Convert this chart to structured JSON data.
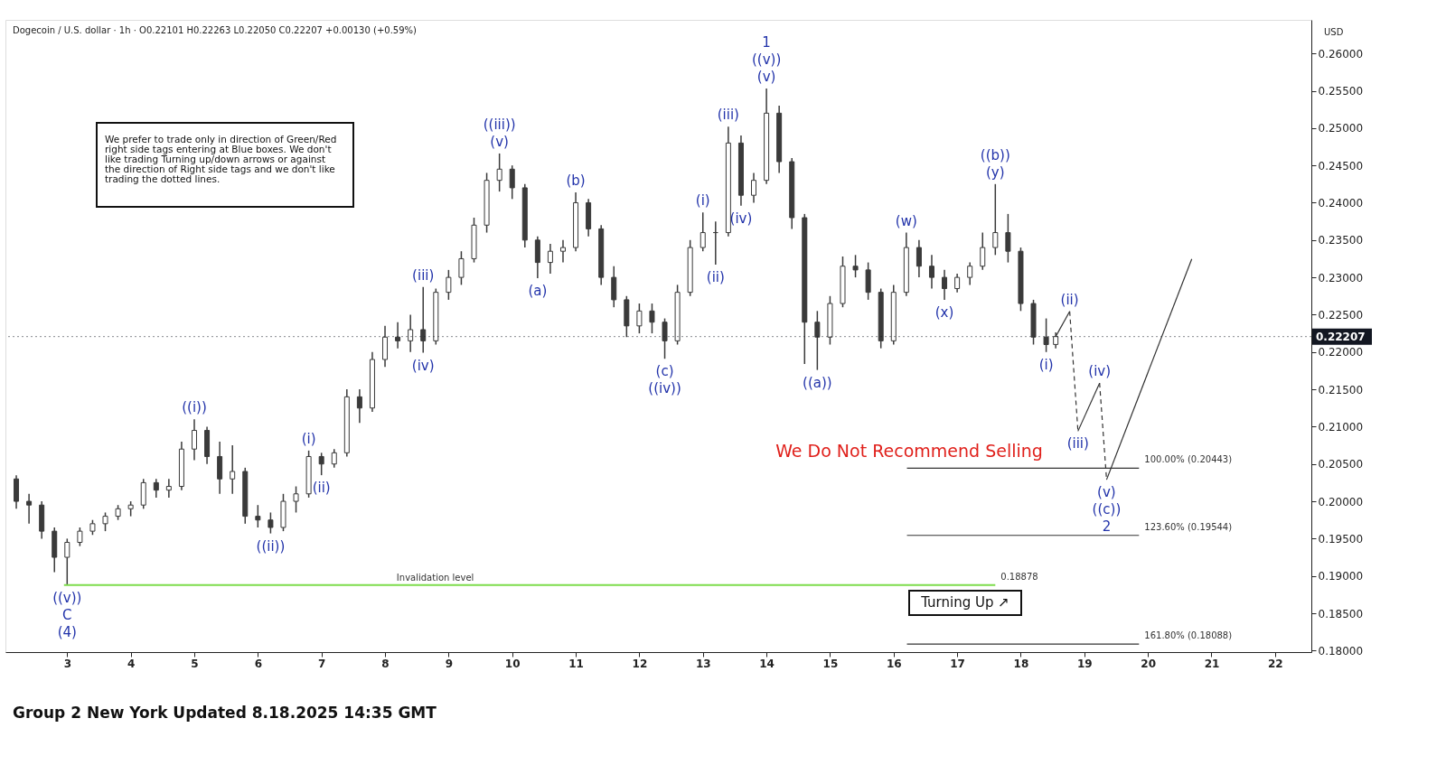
{
  "chart_data": {
    "type": "candlestick",
    "title": "Dogecoin / U.S. dollar · 1h · O0.22101 H0.22263 L0.22050 C0.22207 +0.00130 (+0.59%)",
    "ylabel": "USD",
    "color": "#3a3a3a",
    "x": [
      2.2,
      2.4,
      2.6,
      2.8,
      3.0,
      3.2,
      3.4,
      3.6,
      3.8,
      4.0,
      4.2,
      4.4,
      4.6,
      4.8,
      5.0,
      5.2,
      5.4,
      5.6,
      5.8,
      6.0,
      6.2,
      6.4,
      6.6,
      6.8,
      7.0,
      7.2,
      7.4,
      7.6,
      7.8,
      8.0,
      8.2,
      8.4,
      8.6,
      8.8,
      9.0,
      9.2,
      9.4,
      9.6,
      9.8,
      10.0,
      10.2,
      10.4,
      10.6,
      10.8,
      11.0,
      11.2,
      11.4,
      11.6,
      11.8,
      12.0,
      12.2,
      12.4,
      12.6,
      12.8,
      13.0,
      13.2,
      13.4,
      13.6,
      13.8,
      14.0,
      14.2,
      14.4,
      14.6,
      14.8,
      15.0,
      15.2,
      15.4,
      15.6,
      15.8,
      16.0,
      16.2,
      16.4,
      16.6,
      16.8,
      17.0,
      17.2,
      17.4,
      17.6,
      17.8,
      18.0,
      18.2,
      18.4,
      18.55
    ],
    "ohlc": [
      [
        0.203,
        0.2035,
        0.199,
        0.2
      ],
      [
        0.2,
        0.201,
        0.197,
        0.1995
      ],
      [
        0.1995,
        0.2,
        0.195,
        0.196
      ],
      [
        0.196,
        0.1965,
        0.1905,
        0.1925
      ],
      [
        0.1925,
        0.195,
        0.18878,
        0.1945
      ],
      [
        0.1945,
        0.1965,
        0.194,
        0.196
      ],
      [
        0.196,
        0.1975,
        0.1955,
        0.197
      ],
      [
        0.197,
        0.1985,
        0.196,
        0.198
      ],
      [
        0.198,
        0.1995,
        0.1975,
        0.199
      ],
      [
        0.199,
        0.2,
        0.198,
        0.1995
      ],
      [
        0.1995,
        0.203,
        0.199,
        0.2025
      ],
      [
        0.2025,
        0.203,
        0.2005,
        0.2015
      ],
      [
        0.2015,
        0.203,
        0.2005,
        0.202
      ],
      [
        0.202,
        0.208,
        0.2015,
        0.207
      ],
      [
        0.207,
        0.211,
        0.2055,
        0.2095
      ],
      [
        0.2095,
        0.21,
        0.205,
        0.206
      ],
      [
        0.206,
        0.208,
        0.201,
        0.203
      ],
      [
        0.203,
        0.2075,
        0.201,
        0.204
      ],
      [
        0.204,
        0.2045,
        0.197,
        0.198
      ],
      [
        0.198,
        0.1995,
        0.1965,
        0.1975
      ],
      [
        0.1975,
        0.1985,
        0.1957,
        0.1965
      ],
      [
        0.1965,
        0.201,
        0.196,
        0.2
      ],
      [
        0.2,
        0.202,
        0.1985,
        0.201
      ],
      [
        0.201,
        0.2068,
        0.2005,
        0.206
      ],
      [
        0.206,
        0.2065,
        0.2035,
        0.205
      ],
      [
        0.205,
        0.207,
        0.2045,
        0.2065
      ],
      [
        0.2065,
        0.215,
        0.206,
        0.214
      ],
      [
        0.214,
        0.215,
        0.2105,
        0.2125
      ],
      [
        0.2125,
        0.22,
        0.212,
        0.219
      ],
      [
        0.219,
        0.2235,
        0.218,
        0.222
      ],
      [
        0.222,
        0.224,
        0.2205,
        0.2215
      ],
      [
        0.2215,
        0.225,
        0.22,
        0.223
      ],
      [
        0.223,
        0.2287,
        0.2199,
        0.2215
      ],
      [
        0.2215,
        0.2285,
        0.221,
        0.228
      ],
      [
        0.228,
        0.231,
        0.227,
        0.23
      ],
      [
        0.23,
        0.2335,
        0.229,
        0.2325
      ],
      [
        0.2325,
        0.238,
        0.232,
        0.237
      ],
      [
        0.237,
        0.244,
        0.236,
        0.243
      ],
      [
        0.243,
        0.2466,
        0.2415,
        0.2445
      ],
      [
        0.2445,
        0.245,
        0.2405,
        0.242
      ],
      [
        0.242,
        0.2425,
        0.234,
        0.235
      ],
      [
        0.235,
        0.2355,
        0.2299,
        0.232
      ],
      [
        0.232,
        0.2345,
        0.2305,
        0.2335
      ],
      [
        0.2335,
        0.235,
        0.232,
        0.234
      ],
      [
        0.234,
        0.2414,
        0.2335,
        0.24
      ],
      [
        0.24,
        0.2405,
        0.2355,
        0.2365
      ],
      [
        0.2365,
        0.237,
        0.229,
        0.23
      ],
      [
        0.23,
        0.2315,
        0.226,
        0.227
      ],
      [
        0.227,
        0.2275,
        0.222,
        0.2235
      ],
      [
        0.2235,
        0.2265,
        0.2225,
        0.2255
      ],
      [
        0.2255,
        0.2265,
        0.2225,
        0.224
      ],
      [
        0.224,
        0.2245,
        0.2191,
        0.2215
      ],
      [
        0.2215,
        0.229,
        0.221,
        0.228
      ],
      [
        0.228,
        0.235,
        0.2275,
        0.234
      ],
      [
        0.234,
        0.2387,
        0.2335,
        0.236
      ],
      [
        0.236,
        0.2375,
        0.2317,
        0.236
      ],
      [
        0.236,
        0.2502,
        0.2355,
        0.248
      ],
      [
        0.248,
        0.249,
        0.2396,
        0.241
      ],
      [
        0.241,
        0.244,
        0.24,
        0.243
      ],
      [
        0.243,
        0.2553,
        0.2425,
        0.252
      ],
      [
        0.252,
        0.253,
        0.244,
        0.2455
      ],
      [
        0.2455,
        0.246,
        0.2365,
        0.238
      ],
      [
        0.238,
        0.2385,
        0.2184,
        0.224
      ],
      [
        0.224,
        0.2255,
        0.2176,
        0.222
      ],
      [
        0.222,
        0.2275,
        0.221,
        0.2265
      ],
      [
        0.2265,
        0.2328,
        0.226,
        0.2315
      ],
      [
        0.2315,
        0.233,
        0.23,
        0.231
      ],
      [
        0.231,
        0.232,
        0.227,
        0.228
      ],
      [
        0.228,
        0.2285,
        0.2205,
        0.2215
      ],
      [
        0.2215,
        0.229,
        0.221,
        0.228
      ],
      [
        0.228,
        0.236,
        0.2275,
        0.234
      ],
      [
        0.234,
        0.235,
        0.23,
        0.2315
      ],
      [
        0.2315,
        0.233,
        0.2285,
        0.23
      ],
      [
        0.23,
        0.231,
        0.227,
        0.2285
      ],
      [
        0.2285,
        0.2305,
        0.228,
        0.23
      ],
      [
        0.23,
        0.232,
        0.229,
        0.2315
      ],
      [
        0.2315,
        0.236,
        0.231,
        0.234
      ],
      [
        0.234,
        0.2425,
        0.233,
        0.236
      ],
      [
        0.236,
        0.2385,
        0.232,
        0.2335
      ],
      [
        0.2335,
        0.234,
        0.2255,
        0.2265
      ],
      [
        0.2265,
        0.227,
        0.221,
        0.222
      ],
      [
        0.222,
        0.2245,
        0.22,
        0.221
      ],
      [
        0.22101,
        0.22263,
        0.2205,
        0.22207
      ]
    ],
    "series": [
      {
        "type": "line",
        "color": "#7ddc4b",
        "line_style": "solid",
        "x": [
          2.95,
          17.6
        ],
        "values": [
          0.18878,
          0.18878
        ]
      },
      {
        "type": "line",
        "color": "#333333",
        "line_style": "solid",
        "x": [
          16.21,
          19.86
        ],
        "values": [
          0.20443,
          0.20443
        ]
      },
      {
        "type": "line",
        "color": "#333333",
        "line_style": "solid",
        "x": [
          16.21,
          19.86
        ],
        "values": [
          0.19544,
          0.19544
        ]
      },
      {
        "type": "line",
        "color": "#333333",
        "line_style": "solid",
        "x": [
          16.21,
          19.86
        ],
        "values": [
          0.18088,
          0.18088
        ]
      },
      {
        "type": "line",
        "color": "#333333",
        "line_style": "solid",
        "x": [
          18.55,
          18.77
        ],
        "values": [
          0.22207,
          0.22545
        ]
      },
      {
        "type": "line",
        "color": "#333333",
        "line_style": "dashed",
        "x": [
          18.77,
          18.9
        ],
        "values": [
          0.22545,
          0.2094
        ]
      },
      {
        "type": "line",
        "color": "#333333",
        "line_style": "solid",
        "x": [
          18.9,
          19.24
        ],
        "values": [
          0.2094,
          0.21584
        ]
      },
      {
        "type": "line",
        "color": "#333333",
        "line_style": "dashed",
        "x": [
          19.24,
          19.35
        ],
        "values": [
          0.21584,
          0.2029
        ]
      },
      {
        "type": "line",
        "color": "#333333",
        "line_style": "solid",
        "x": [
          19.35,
          20.69
        ],
        "values": [
          0.2029,
          0.23247
        ]
      }
    ],
    "ref_lines": [
      {
        "axis": "y",
        "value": 0.22207,
        "label": "0.22207",
        "color": "#131722",
        "line_style": "dotted"
      }
    ],
    "annotations": [
      "We prefer to trade only in direction of Green/Red\nright side tags entering at Blue boxes. We don't\nlike trading Turning up/down arrows or against\nthe direction of Right side tags and we don't like\ntrading the dotted lines.",
      "We Do Not Recommend Selling",
      "Turning Up ↗",
      "Group 2 New York Updated 8.18.2025 14:35 GMT",
      {
        "text": "((v))",
        "x": 3.0,
        "y": 0.18878
      },
      {
        "text": "C",
        "x": 3.0,
        "y": 0.18878
      },
      {
        "text": "(4)",
        "x": 3.0,
        "y": 0.18878
      },
      {
        "text": "((i))",
        "x": 5.0,
        "y": 0.211
      },
      {
        "text": "((ii))",
        "x": 6.2,
        "y": 0.1957
      },
      {
        "text": "(i)",
        "x": 6.8,
        "y": 0.2068
      },
      {
        "text": "(ii)",
        "x": 7.0,
        "y": 0.2035
      },
      {
        "text": "(iii)",
        "x": 8.6,
        "y": 0.2287
      },
      {
        "text": "(iv)",
        "x": 8.6,
        "y": 0.2199
      },
      {
        "text": "((iii))",
        "x": 9.8,
        "y": 0.2466
      },
      {
        "text": "(v)",
        "x": 9.8,
        "y": 0.2466
      },
      {
        "text": "(a)",
        "x": 10.4,
        "y": 0.2299
      },
      {
        "text": "(b)",
        "x": 11.0,
        "y": 0.2414
      },
      {
        "text": "(c)",
        "x": 12.4,
        "y": 0.2191
      },
      {
        "text": "((iv))",
        "x": 12.4,
        "y": 0.2191
      },
      {
        "text": "(i)",
        "x": 13.0,
        "y": 0.2387
      },
      {
        "text": "(ii)",
        "x": 13.2,
        "y": 0.2317
      },
      {
        "text": "(iii)",
        "x": 13.4,
        "y": 0.2502
      },
      {
        "text": "(iv)",
        "x": 13.6,
        "y": 0.2396
      },
      {
        "text": "1",
        "x": 14.0,
        "y": 0.2553
      },
      {
        "text": "((v))",
        "x": 14.0,
        "y": 0.2553
      },
      {
        "text": "(v)",
        "x": 14.0,
        "y": 0.2553
      },
      {
        "text": "((a))",
        "x": 14.8,
        "y": 0.2176
      },
      {
        "text": "(w)",
        "x": 16.2,
        "y": 0.236
      },
      {
        "text": "(x)",
        "x": 16.8,
        "y": 0.227
      },
      {
        "text": "((b))",
        "x": 17.6,
        "y": 0.2425
      },
      {
        "text": "(y)",
        "x": 17.6,
        "y": 0.2425
      },
      {
        "text": "(i)",
        "x": 18.4,
        "y": 0.22
      },
      {
        "text": "(ii)",
        "x": 18.77,
        "y": 0.22545
      },
      {
        "text": "(iii)",
        "x": 18.9,
        "y": 0.2094
      },
      {
        "text": "(iv)",
        "x": 19.24,
        "y": 0.21584
      },
      {
        "text": "(v)",
        "x": 19.35,
        "y": 0.2029
      },
      {
        "text": "((c))",
        "x": 19.35,
        "y": 0.2029
      },
      {
        "text": "2",
        "x": 19.35,
        "y": 0.2029
      },
      {
        "text": "Invalidation level",
        "x": 8.79,
        "y": 0.18878
      },
      {
        "text": "0.18878",
        "x": 17.6,
        "y": 0.18878
      },
      {
        "text": "100.00% (0.20443)",
        "x": 19.86,
        "y": 0.20443
      },
      {
        "text": "123.60% (0.19544)",
        "x": 19.86,
        "y": 0.19544
      },
      {
        "text": "161.80% (0.18088)",
        "x": 19.86,
        "y": 0.18088
      }
    ],
    "xlim": [
      2.1,
      22.5
    ],
    "xticks": [
      3,
      4,
      5,
      6,
      7,
      8,
      9,
      10,
      11,
      12,
      13,
      14,
      15,
      16,
      17,
      18,
      19,
      20,
      21,
      22
    ],
    "ylim": [
      0.1798,
      0.2645
    ],
    "yticks": [
      {
        "value": 0.18,
        "label": "0.18000"
      },
      {
        "value": 0.185,
        "label": "0.18500"
      },
      {
        "value": 0.19,
        "label": "0.19000"
      },
      {
        "value": 0.195,
        "label": "0.19500"
      },
      {
        "value": 0.2,
        "label": "0.20000"
      },
      {
        "value": 0.205,
        "label": "0.20500"
      },
      {
        "value": 0.21,
        "label": "0.21000"
      },
      {
        "value": 0.215,
        "label": "0.21500"
      },
      {
        "value": 0.22,
        "label": "0.22000"
      },
      {
        "value": 0.225,
        "label": "0.22500"
      },
      {
        "value": 0.23,
        "label": "0.23000"
      },
      {
        "value": 0.235,
        "label": "0.23500"
      },
      {
        "value": 0.24,
        "label": "0.24000"
      },
      {
        "value": 0.245,
        "label": "0.24500"
      },
      {
        "value": 0.25,
        "label": "0.25000"
      },
      {
        "value": 0.255,
        "label": "0.25500"
      },
      {
        "value": 0.26,
        "label": "0.26000"
      }
    ],
    "grid": false
  }
}
